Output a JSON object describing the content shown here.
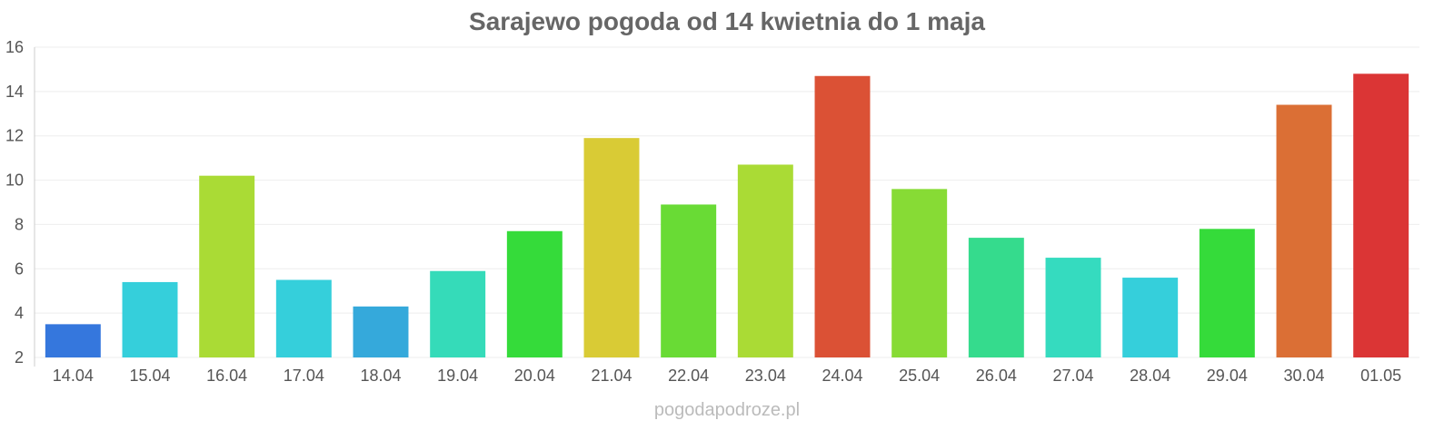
{
  "chart_data": {
    "type": "bar",
    "title": "Sarajewo pogoda od 14 kwietnia do 1 maja",
    "xlabel": "",
    "ylabel": "",
    "ylim": [
      2,
      16
    ],
    "yticks": [
      2,
      4,
      6,
      8,
      10,
      12,
      14,
      16
    ],
    "grid": true,
    "legend": "none",
    "categories": [
      "14.04",
      "15.04",
      "16.04",
      "17.04",
      "18.04",
      "19.04",
      "20.04",
      "21.04",
      "22.04",
      "23.04",
      "24.04",
      "25.04",
      "26.04",
      "27.04",
      "28.04",
      "29.04",
      "30.04",
      "01.05"
    ],
    "values": [
      3.5,
      5.4,
      10.2,
      5.5,
      4.3,
      5.9,
      7.7,
      11.9,
      8.9,
      10.7,
      14.7,
      9.6,
      7.4,
      6.5,
      5.6,
      7.8,
      13.4,
      14.8
    ],
    "colors": [
      "#3577dd",
      "#35cfdb",
      "#aadb35",
      "#35cfdb",
      "#35a9db",
      "#35dbb9",
      "#35db3a",
      "#d9cb35",
      "#69db35",
      "#aadb35",
      "#db5135",
      "#87db35",
      "#35db8d",
      "#35dbbf",
      "#35cfdb",
      "#35db3a",
      "#db6f35",
      "#db3535"
    ]
  },
  "watermark": "pogodapodroze.pl"
}
